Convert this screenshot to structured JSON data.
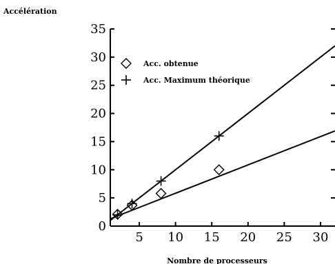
{
  "chart_data": {
    "type": "line",
    "ylabel": "Accélération",
    "xlabel": "Nombre de processeurs",
    "xlim": [
      1,
      32
    ],
    "ylim": [
      0,
      35
    ],
    "x_ticks": [
      5,
      10,
      15,
      20,
      25,
      30
    ],
    "y_ticks": [
      0,
      5,
      10,
      15,
      20,
      25,
      30,
      35
    ],
    "legend_position": "top-left",
    "series": [
      {
        "name": "Acc. obtenue",
        "marker": "diamond",
        "points": [
          [
            2,
            2.1
          ],
          [
            4,
            3.7
          ],
          [
            8,
            5.8
          ],
          [
            16,
            10.0
          ]
        ],
        "fit_line": [
          [
            1,
            1.3
          ],
          [
            32,
            16.9
          ]
        ]
      },
      {
        "name": "Acc. Maximum théorique",
        "marker": "plus",
        "points": [
          [
            2,
            2.0
          ],
          [
            4,
            4.0
          ],
          [
            8,
            8.0
          ],
          [
            16,
            16.0
          ]
        ],
        "fit_line": [
          [
            1,
            1.0
          ],
          [
            32,
            32.0
          ]
        ]
      }
    ]
  }
}
